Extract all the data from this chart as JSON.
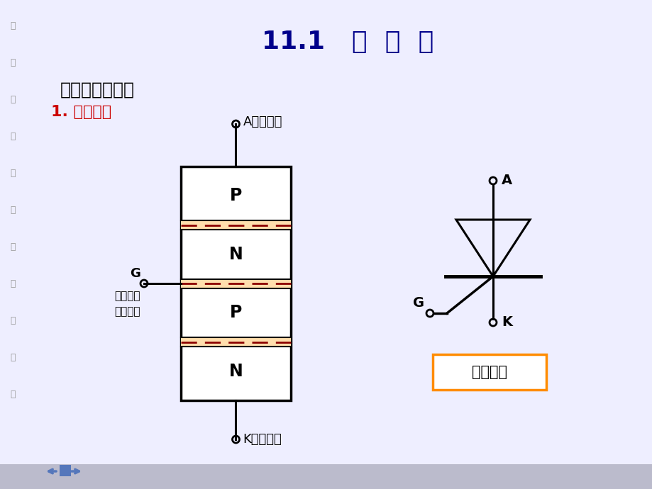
{
  "bg_color": "#EEEEFF",
  "title": "11.1   晶  闸  管",
  "title_color": "#00008B",
  "title_fontsize": 26,
  "subtitle1": "一、普通晶闸管",
  "subtitle1_color": "#000000",
  "subtitle1_fontsize": 18,
  "subtitle2": "1. 基本结构",
  "subtitle2_color": "#CC0000",
  "subtitle2_fontsize": 16,
  "side_text": [
    "大",
    "连",
    "理",
    "工",
    "大",
    "学",
    "电",
    "气",
    "工",
    "程",
    "系"
  ],
  "side_text_color": "#999999",
  "junction_color_fill": "#FFDEAD",
  "junction_color_dash": "#8B0000",
  "label_A": "A（阳极）",
  "label_K": "K（阴极）",
  "label_G": "G",
  "label_G2_line1": "（控制极",
  "label_G2_line2": "或门极）",
  "sym_label_A": "A",
  "sym_label_K": "K",
  "sym_label_G": "G",
  "sym_box_label": "图形符号",
  "sym_box_color": "#FF8C00",
  "bottom_bar_color": "#BBBBCC",
  "nav_color": "#5577BB"
}
